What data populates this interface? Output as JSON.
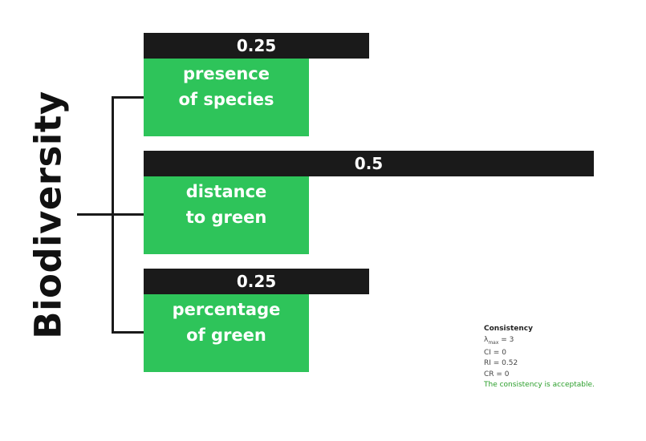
{
  "root": {
    "label": "Biodiversity"
  },
  "criteria": [
    {
      "weight": "0.25",
      "weight_value": 0.25,
      "label_line1": "presence",
      "label_line2": "of species"
    },
    {
      "weight": "0.5",
      "weight_value": 0.5,
      "label_line1": "distance",
      "label_line2": "to green"
    },
    {
      "weight": "0.25",
      "weight_value": 0.25,
      "label_line1": "percentage",
      "label_line2": "of green"
    }
  ],
  "consistency": {
    "title": "Consistency",
    "lambda_symbol": "λ",
    "lambda_sub": "max",
    "lambda_value": " = 3",
    "ci": "CI = 0",
    "ri": "RI = 0.52",
    "cr": "CR = 0",
    "message": "The consistency is acceptable."
  },
  "colors": {
    "node": "#2ec45a",
    "weight_bar": "#1a1a1a",
    "ok_message": "#2a9e2a"
  }
}
